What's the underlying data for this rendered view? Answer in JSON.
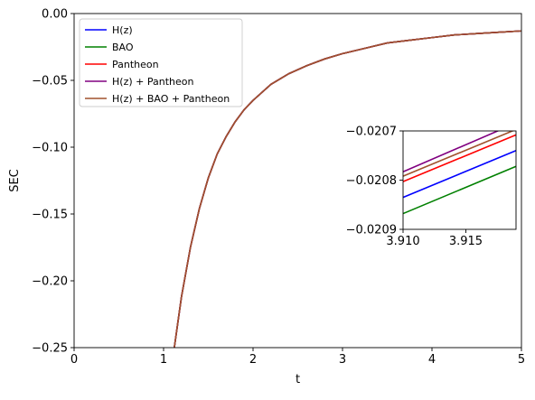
{
  "chart_data": [
    {
      "type": "line",
      "role": "main",
      "xlabel": "t",
      "ylabel": "SEC",
      "xlim": [
        0,
        5
      ],
      "ylim": [
        -0.25,
        0.0
      ],
      "xticks": [
        0,
        1,
        2,
        3,
        4,
        5
      ],
      "xtick_labels": [
        "0",
        "1",
        "2",
        "3",
        "4",
        "5"
      ],
      "yticks": [
        0.0,
        -0.05,
        -0.1,
        -0.15,
        -0.2,
        -0.25
      ],
      "ytick_labels": [
        "0.00",
        "−0.05",
        "−0.10",
        "−0.15",
        "−0.20",
        "−0.25"
      ],
      "grid": false,
      "legend_position": "top-left",
      "x": [
        1.12,
        1.2,
        1.3,
        1.4,
        1.5,
        1.6,
        1.7,
        1.8,
        1.9,
        2.0,
        2.2,
        2.4,
        2.6,
        2.8,
        3.0,
        3.25,
        3.5,
        3.75,
        4.0,
        4.25,
        4.5,
        4.75,
        5.0
      ],
      "series": [
        {
          "name": "H(z)",
          "color": "#0000ff",
          "values": [
            -0.25,
            -0.212,
            -0.175,
            -0.146,
            -0.123,
            -0.105,
            -0.092,
            -0.081,
            -0.072,
            -0.065,
            -0.053,
            -0.045,
            -0.039,
            -0.034,
            -0.03,
            -0.026,
            -0.022,
            -0.02,
            -0.018,
            -0.016,
            -0.015,
            -0.014,
            -0.013
          ]
        },
        {
          "name": "BAO",
          "color": "#008000",
          "values": [
            -0.25,
            -0.212,
            -0.175,
            -0.146,
            -0.123,
            -0.105,
            -0.092,
            -0.081,
            -0.072,
            -0.065,
            -0.053,
            -0.045,
            -0.039,
            -0.034,
            -0.03,
            -0.026,
            -0.022,
            -0.02,
            -0.018,
            -0.016,
            -0.015,
            -0.014,
            -0.013
          ]
        },
        {
          "name": "Pantheon",
          "color": "#ff0000",
          "values": [
            -0.25,
            -0.212,
            -0.175,
            -0.146,
            -0.123,
            -0.105,
            -0.092,
            -0.081,
            -0.072,
            -0.065,
            -0.053,
            -0.045,
            -0.039,
            -0.034,
            -0.03,
            -0.026,
            -0.022,
            -0.02,
            -0.018,
            -0.016,
            -0.015,
            -0.014,
            -0.013
          ]
        },
        {
          "name": "H(z) + Pantheon",
          "color": "#800080",
          "values": [
            -0.25,
            -0.212,
            -0.175,
            -0.146,
            -0.123,
            -0.105,
            -0.092,
            -0.081,
            -0.072,
            -0.065,
            -0.053,
            -0.045,
            -0.039,
            -0.034,
            -0.03,
            -0.026,
            -0.022,
            -0.02,
            -0.018,
            -0.016,
            -0.015,
            -0.014,
            -0.013
          ]
        },
        {
          "name": "H(z) + BAO + Pantheon",
          "color": "#a0522d",
          "values": [
            -0.25,
            -0.212,
            -0.175,
            -0.146,
            -0.123,
            -0.105,
            -0.092,
            -0.081,
            -0.072,
            -0.065,
            -0.053,
            -0.045,
            -0.039,
            -0.034,
            -0.03,
            -0.026,
            -0.022,
            -0.02,
            -0.018,
            -0.016,
            -0.015,
            -0.014,
            -0.013
          ]
        }
      ]
    },
    {
      "type": "line",
      "role": "inset",
      "xlim": [
        3.91,
        3.919
      ],
      "ylim": [
        -0.0209,
        -0.0207
      ],
      "xticks": [
        3.91,
        3.915
      ],
      "xtick_labels": [
        "3.910",
        "3.915"
      ],
      "yticks": [
        -0.0207,
        -0.0208,
        -0.0209
      ],
      "ytick_labels": [
        "−0.0207",
        "−0.0208",
        "−0.0209"
      ],
      "x": [
        3.91,
        3.919
      ],
      "series": [
        {
          "name": "H(z)",
          "color": "#0000ff",
          "values": [
            -0.020835,
            -0.02074
          ]
        },
        {
          "name": "BAO",
          "color": "#008000",
          "values": [
            -0.020868,
            -0.020772
          ]
        },
        {
          "name": "Pantheon",
          "color": "#ff0000",
          "values": [
            -0.020803,
            -0.020708
          ]
        },
        {
          "name": "H(z) + Pantheon",
          "color": "#800080",
          "values": [
            -0.020783,
            -0.020684
          ]
        },
        {
          "name": "H(z) + BAO + Pantheon",
          "color": "#a0522d",
          "values": [
            -0.020792,
            -0.020697
          ]
        }
      ]
    }
  ]
}
